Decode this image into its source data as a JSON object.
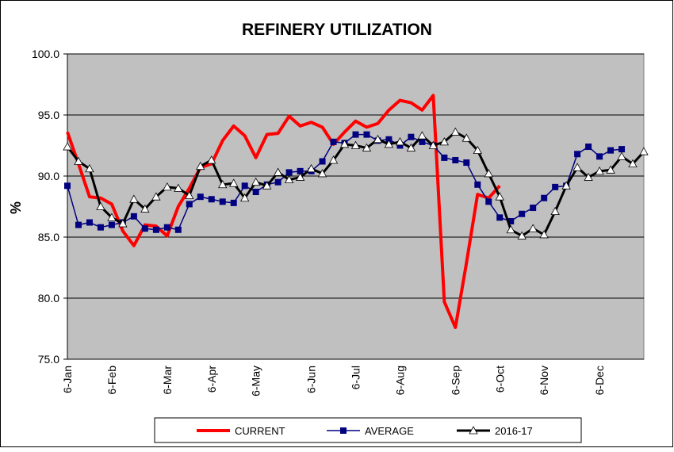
{
  "chart_data": {
    "type": "line",
    "title": "REFINERY UTILIZATION",
    "y_label": "%",
    "categories": [
      "6-Jan",
      null,
      null,
      null,
      "6-Feb",
      null,
      null,
      null,
      null,
      "6-Mar",
      null,
      null,
      null,
      "6-Apr",
      null,
      null,
      null,
      "6-May",
      null,
      null,
      null,
      null,
      "6-Jun",
      null,
      null,
      null,
      "6-Jul",
      null,
      null,
      null,
      "6-Aug",
      null,
      null,
      null,
      null,
      "6-Sep",
      null,
      null,
      null,
      "6-Oct",
      null,
      null,
      null,
      "6-Nov",
      null,
      null,
      null,
      null,
      "6-Dec",
      null,
      null,
      null,
      null
    ],
    "series": [
      {
        "name": "CURRENT",
        "color": "#ff0000",
        "values": [
          93.6,
          91,
          88.3,
          88.2,
          87.7,
          85.5,
          84.3,
          86,
          85.9,
          85.1,
          87.5,
          89,
          90.7,
          91,
          92.9,
          94.1,
          93.3,
          91.5,
          93.4,
          93.5,
          94.9,
          94.1,
          94.4,
          94,
          92.6,
          93.6,
          94.5,
          94,
          94.3,
          95.4,
          96.2,
          96,
          95.4,
          96.6,
          79.7,
          77.6,
          82.9,
          88.5,
          88.2,
          89.2,
          null,
          null,
          null,
          null,
          null,
          null,
          null,
          null,
          null,
          null,
          null,
          null,
          null
        ]
      },
      {
        "name": "AVERAGE",
        "color": "#000080",
        "values": [
          89.2,
          86,
          86.2,
          85.8,
          86,
          86.2,
          86.7,
          85.7,
          85.6,
          85.8,
          85.6,
          87.7,
          88.3,
          88.1,
          87.9,
          87.8,
          89.2,
          88.7,
          89.3,
          89.5,
          90.3,
          90.4,
          90.4,
          91.2,
          92.8,
          92.7,
          93.4,
          93.4,
          92.9,
          93,
          92.5,
          93.2,
          92.8,
          92.5,
          91.5,
          91.3,
          91.1,
          89.3,
          87.9,
          86.6,
          86.3,
          86.9,
          87.4,
          88.2,
          89.1,
          89.2,
          91.8,
          92.4,
          91.6,
          92.1,
          92.2,
          null,
          null
        ]
      },
      {
        "name": "2016-17",
        "color": "#000000",
        "values": [
          92.4,
          91.2,
          90.6,
          87.5,
          86.6,
          86.1,
          88.1,
          87.3,
          88.3,
          89.1,
          89,
          88.4,
          90.8,
          91.3,
          89.3,
          89.4,
          88.2,
          89.5,
          89.2,
          90.3,
          89.7,
          89.9,
          90.6,
          90.2,
          91.3,
          92.6,
          92.5,
          92.3,
          93,
          92.6,
          92.8,
          92.3,
          93.3,
          92.5,
          92.8,
          93.6,
          93.1,
          92.1,
          90.2,
          88.3,
          85.6,
          85.1,
          85.7,
          85.2,
          87.1,
          89.2,
          90.7,
          89.9,
          90.4,
          90.5,
          91.6,
          91,
          92
        ]
      }
    ],
    "ylim": [
      75,
      100
    ],
    "yticks": [
      {
        "value": 75,
        "label": "75.0"
      },
      {
        "value": 80,
        "label": "80.0"
      },
      {
        "value": 85,
        "label": "85.0"
      },
      {
        "value": 90,
        "label": "90.0"
      },
      {
        "value": 95,
        "label": "95.0"
      },
      {
        "value": 100,
        "label": "100.0"
      }
    ],
    "grid": true,
    "plot_background": "#c0c0c0",
    "legend_position": "bottom"
  }
}
